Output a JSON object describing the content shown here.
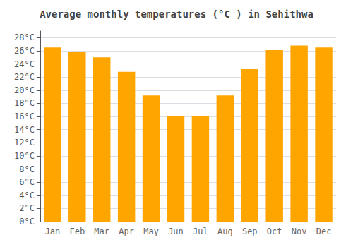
{
  "chart_data": {
    "type": "bar",
    "title": "Average monthly temperatures (°C ) in Sehithwa",
    "categories": [
      "Jan",
      "Feb",
      "Mar",
      "Apr",
      "May",
      "Jun",
      "Jul",
      "Aug",
      "Sep",
      "Oct",
      "Nov",
      "Dec"
    ],
    "values": [
      26.5,
      25.8,
      25.0,
      22.8,
      19.2,
      16.1,
      16.0,
      19.2,
      23.2,
      26.1,
      26.8,
      26.5
    ],
    "color": "#FFA500",
    "ylim": [
      0,
      29
    ],
    "yticks": [
      {
        "value": 0,
        "label": "0°C"
      },
      {
        "value": 2,
        "label": "2°C"
      },
      {
        "value": 4,
        "label": "4°C"
      },
      {
        "value": 6,
        "label": "6°C"
      },
      {
        "value": 8,
        "label": "8°C"
      },
      {
        "value": 10,
        "label": "10°C"
      },
      {
        "value": 12,
        "label": "12°C"
      },
      {
        "value": 14,
        "label": "14°C"
      },
      {
        "value": 16,
        "label": "16°C"
      },
      {
        "value": 18,
        "label": "18°C"
      },
      {
        "value": 20,
        "label": "20°C"
      },
      {
        "value": 22,
        "label": "22°C"
      },
      {
        "value": 24,
        "label": "24°C"
      },
      {
        "value": 26,
        "label": "26°C"
      },
      {
        "value": 28,
        "label": "28°C"
      }
    ],
    "grid": true
  }
}
